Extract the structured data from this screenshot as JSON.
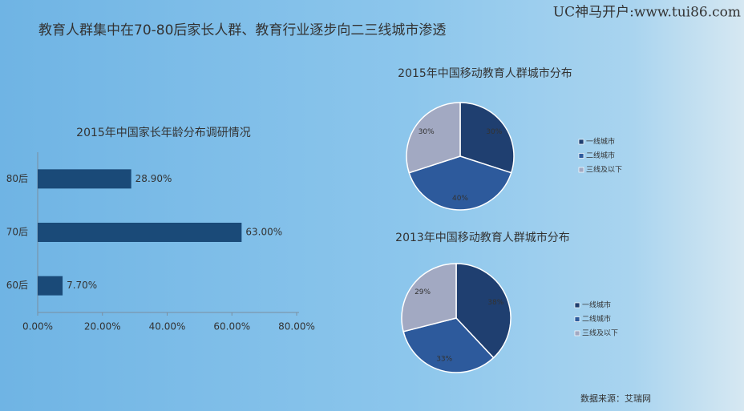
{
  "title": "教育人群集中在70-80后家长人群、教育行业逐步向二三线城市渗透",
  "watermark": "UC神马开户:www.tui86.com",
  "source": "数据来源：艾瑞网",
  "chart_data": [
    {
      "type": "barh",
      "title": "2015年中国家长年龄分布调研情况",
      "categories": [
        "80后",
        "70后",
        "60后"
      ],
      "values": [
        28.9,
        63,
        7.7
      ],
      "value_labels": [
        "28.90%",
        "63.00%",
        "7.70%"
      ],
      "color": "#1a4a78",
      "xlim": [
        0,
        80
      ],
      "xticks": [
        {
          "value": 0,
          "label": "0.00%"
        },
        {
          "value": 20,
          "label": "20.00%"
        },
        {
          "value": 40,
          "label": "40.00%"
        },
        {
          "value": 60,
          "label": "60.00%"
        },
        {
          "value": 80,
          "label": "80.00%"
        }
      ]
    },
    {
      "type": "pie",
      "title": "2015年中国移动教育人群城市分布",
      "categories": [
        "一线城市",
        "二线城市",
        "三线及以下"
      ],
      "values": [
        30,
        40,
        30
      ],
      "value_labels": [
        "30%",
        "40%",
        "30%"
      ],
      "colors": [
        "#1f3f70",
        "#2d5a9c",
        "#a2a9c2"
      ]
    },
    {
      "type": "pie",
      "title": "2013年中国移动教育人群城市分布",
      "categories": [
        "一线城市",
        "二线城市",
        "三线及以下"
      ],
      "values": [
        38,
        33,
        29
      ],
      "value_labels": [
        "38%",
        "33%",
        "29%"
      ],
      "colors": [
        "#1f3f70",
        "#2d5a9c",
        "#a2a9c2"
      ]
    }
  ]
}
